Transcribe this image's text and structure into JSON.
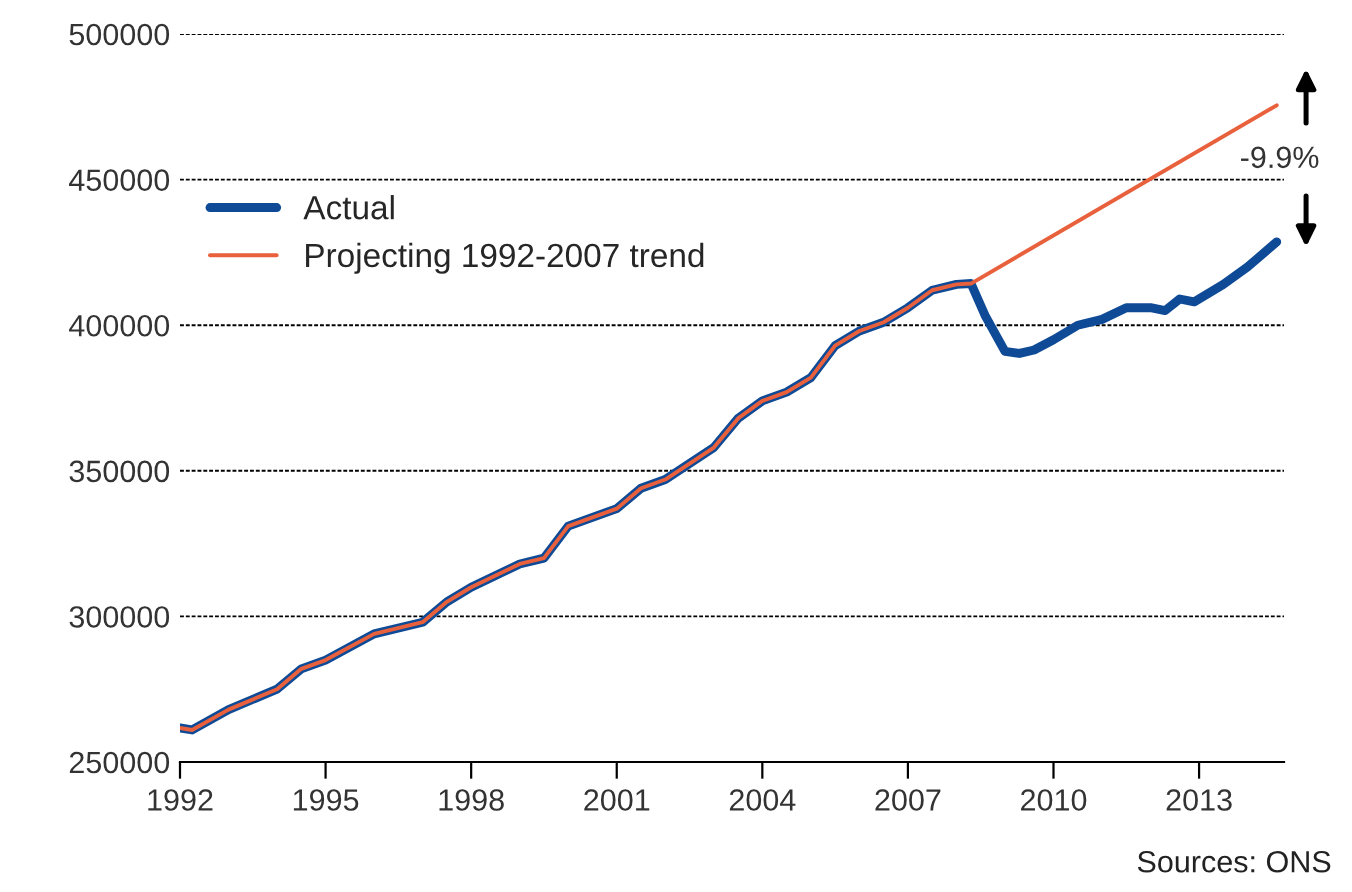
{
  "chart_data": {
    "type": "line",
    "xlim": [
      1992,
      2014.75
    ],
    "xticks": [
      1992,
      1995,
      1998,
      2001,
      2004,
      2007,
      2010,
      2013
    ],
    "ylim": [
      250000,
      500000
    ],
    "yticks": [
      250000,
      300000,
      350000,
      400000,
      450000,
      500000
    ],
    "grid": "y",
    "legend": "top left",
    "line_style": "solid",
    "marker": "none",
    "series": [
      {
        "name": "Actual",
        "color": "#0e4a96",
        "x": [
          1992.0,
          1992.25,
          1993.0,
          1994.0,
          1994.5,
          1995.0,
          1996.0,
          1997.0,
          1997.5,
          1998.0,
          1999.0,
          1999.5,
          2000.0,
          2001.0,
          2001.5,
          2002.0,
          2003.0,
          2003.5,
          2004.0,
          2004.5,
          2005.0,
          2005.5,
          2006.0,
          2006.5,
          2007.0,
          2007.5,
          2008.0,
          2008.3,
          2008.6,
          2009.0,
          2009.3,
          2009.6,
          2010.0,
          2010.5,
          2011.0,
          2011.5,
          2012.0,
          2012.3,
          2012.6,
          2012.9,
          2013.5,
          2014.0,
          2014.6
        ],
        "values": [
          261700,
          261000,
          268000,
          275000,
          282000,
          285000,
          294000,
          298000,
          305000,
          310000,
          318000,
          320000,
          331000,
          337000,
          344000,
          347000,
          358000,
          368000,
          374000,
          377000,
          382000,
          393000,
          398000,
          401000,
          406000,
          412000,
          414000,
          414300,
          403000,
          391000,
          390300,
          391500,
          395000,
          400000,
          402000,
          406000,
          406000,
          405000,
          409000,
          408000,
          414000,
          420000,
          428600
        ]
      },
      {
        "name": "Projecting 1992-2007 trend",
        "color": "#e8603c",
        "x": [
          1992.0,
          1992.25,
          1993.0,
          1994.0,
          1994.5,
          1995.0,
          1996.0,
          1997.0,
          1997.5,
          1998.0,
          1999.0,
          1999.5,
          2000.0,
          2001.0,
          2001.5,
          2002.0,
          2003.0,
          2003.5,
          2004.0,
          2004.5,
          2005.0,
          2005.5,
          2006.0,
          2006.5,
          2007.0,
          2007.5,
          2008.0,
          2008.3,
          2014.6
        ],
        "values": [
          261700,
          261000,
          268000,
          275000,
          282000,
          285000,
          294000,
          298000,
          305000,
          310000,
          318000,
          320000,
          331000,
          337000,
          344000,
          347000,
          358000,
          368000,
          374000,
          377000,
          382000,
          393000,
          398000,
          401000,
          406000,
          412000,
          414000,
          414300,
          475500
        ]
      }
    ],
    "annotations": [
      "-9.9%",
      "Sources: ONS"
    ]
  }
}
